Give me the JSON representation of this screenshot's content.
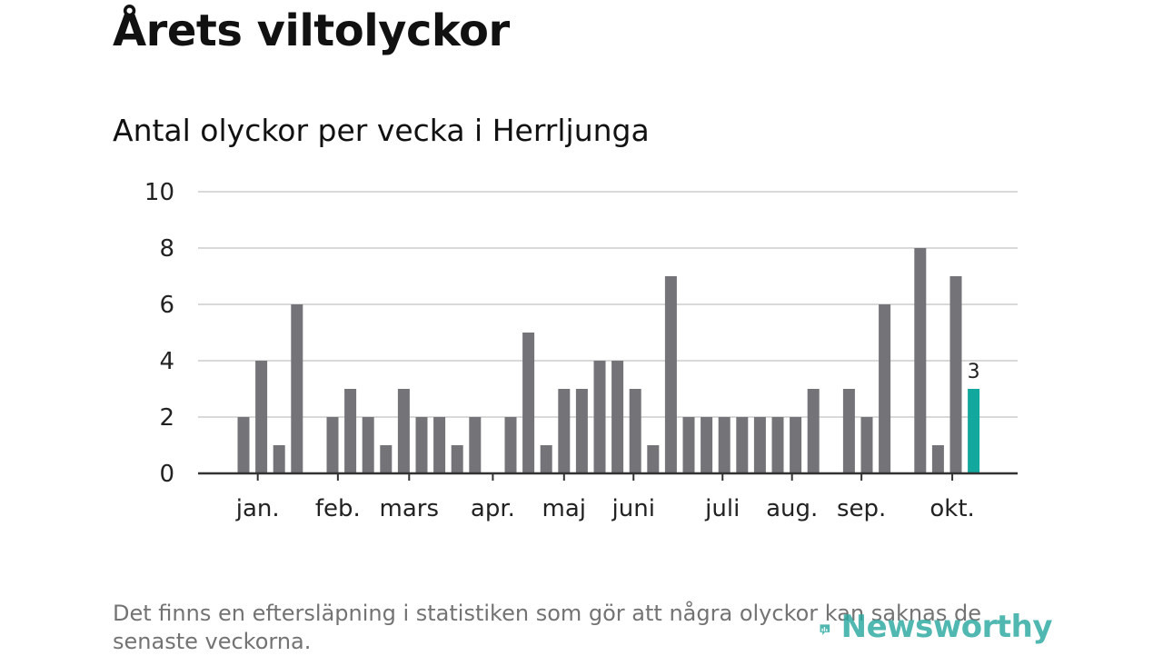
{
  "title": "Årets viltolyckor",
  "subtitle": "Antal olyckor per vecka i Herrljunga",
  "footnote": "Det finns en eftersläpning i statistiken som gör att några olyckor kan saknas de senaste veckorna.",
  "logo": {
    "text": "Newsworthy",
    "icon": "newsworthy-logo-icon"
  },
  "colors": {
    "bar": "#747378",
    "highlight": "#12a89d",
    "grid": "#d9d9d9",
    "axis": "#333333",
    "logo": "#2aa9a0"
  },
  "chart_data": {
    "type": "bar",
    "title": "Årets viltolyckor",
    "subtitle": "Antal olyckor per vecka i Herrljunga",
    "xlabel": "",
    "ylabel": "",
    "ylim": [
      0,
      10
    ],
    "yticks": [
      0,
      2,
      4,
      6,
      8,
      10
    ],
    "grid": true,
    "x": [
      1,
      2,
      3,
      4,
      5,
      6,
      7,
      8,
      9,
      10,
      11,
      12,
      13,
      14,
      15,
      16,
      17,
      18,
      19,
      20,
      21,
      22,
      23,
      24,
      25,
      26,
      27,
      28,
      29,
      30,
      31,
      32,
      33,
      34,
      35,
      36,
      37,
      38,
      39,
      40,
      41,
      42,
      43,
      44,
      45
    ],
    "values": [
      2,
      4,
      1,
      6,
      0,
      2,
      3,
      2,
      1,
      3,
      2,
      2,
      1,
      2,
      0,
      2,
      5,
      1,
      3,
      3,
      4,
      4,
      3,
      1,
      7,
      2,
      2,
      2,
      2,
      2,
      2,
      2,
      3,
      0,
      3,
      2,
      6,
      0,
      8,
      1,
      7,
      3,
      null,
      null,
      null
    ],
    "highlight_index": 41,
    "highlight_label": "3",
    "month_ticks": [
      {
        "label": "jan.",
        "week": 1.8
      },
      {
        "label": "feb.",
        "week": 6.3
      },
      {
        "label": "mars",
        "week": 10.3
      },
      {
        "label": "apr.",
        "week": 15.0
      },
      {
        "label": "maj",
        "week": 19.0
      },
      {
        "label": "juni",
        "week": 22.9
      },
      {
        "label": "juli",
        "week": 27.9
      },
      {
        "label": "aug.",
        "week": 31.8
      },
      {
        "label": "sep.",
        "week": 35.7
      },
      {
        "label": "okt.",
        "week": 40.8
      }
    ]
  }
}
